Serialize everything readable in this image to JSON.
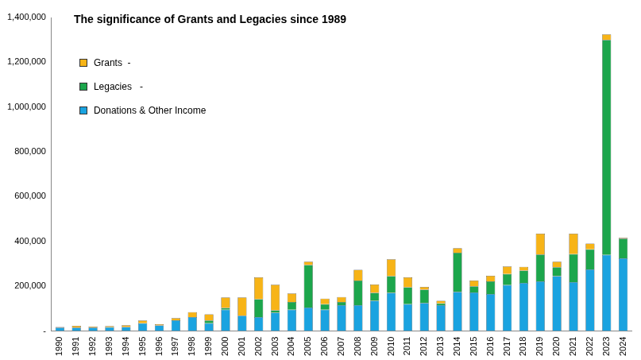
{
  "chart_data": {
    "type": "bar",
    "title": "The significance of Grants and Legacies since 1989",
    "stacked": true,
    "grid": false,
    "legend": "top-left",
    "categories": [
      "1990",
      "1991",
      "1992",
      "1993",
      "1994",
      "1995",
      "1996",
      "1997",
      "1998",
      "1999",
      "2000",
      "2001",
      "2002",
      "2003",
      "2004",
      "2005",
      "2006",
      "2007",
      "2008",
      "2009",
      "2010",
      "2011",
      "2012",
      "2013",
      "2014",
      "2015",
      "2016",
      "2017",
      "2018",
      "2019",
      "2020",
      "2021",
      "2022",
      "2023",
      "2024"
    ],
    "series": [
      {
        "name": "Donations & Other Income",
        "color": "#1aa3e0",
        "values": [
          15000,
          15000,
          15000,
          17000,
          18000,
          35000,
          25000,
          48000,
          62000,
          35000,
          95000,
          68000,
          62000,
          82000,
          95000,
          105000,
          95000,
          115000,
          115000,
          135000,
          170000,
          120000,
          125000,
          115000,
          175000,
          172000,
          165000,
          205000,
          215000,
          222000,
          245000,
          218000,
          275000,
          340000,
          325000
        ]
      },
      {
        "name": "Legacies   -",
        "color": "#1ca64c",
        "values": [
          0,
          0,
          0,
          0,
          0,
          0,
          0,
          0,
          0,
          12000,
          8000,
          0,
          80000,
          10000,
          35000,
          190000,
          25000,
          15000,
          110000,
          35000,
          75000,
          75000,
          60000,
          8000,
          175000,
          28000,
          57000,
          50000,
          55000,
          120000,
          40000,
          125000,
          90000,
          960000,
          88000
        ]
      },
      {
        "name": "Grants  -",
        "color": "#f7b417",
        "values": [
          3000,
          8000,
          5000,
          5000,
          8000,
          12000,
          5000,
          10000,
          22000,
          28000,
          47000,
          82000,
          98000,
          115000,
          38000,
          15000,
          25000,
          22000,
          48000,
          38000,
          75000,
          45000,
          12000,
          12000,
          20000,
          25000,
          25000,
          33000,
          17000,
          93000,
          25000,
          92000,
          25000,
          25000,
          3000
        ]
      }
    ],
    "ylim": [
      0,
      1400000
    ],
    "yticks": [
      {
        "value": 0,
        "label": "-"
      },
      {
        "value": 200000,
        "label": "200,000"
      },
      {
        "value": 400000,
        "label": "400,000"
      },
      {
        "value": 600000,
        "label": "600,000"
      },
      {
        "value": 800000,
        "label": "800,000"
      },
      {
        "value": 1000000,
        "label": "1,000,000"
      },
      {
        "value": 1200000,
        "label": "1,200,000"
      },
      {
        "value": 1400000,
        "label": "1,400,000"
      }
    ]
  }
}
